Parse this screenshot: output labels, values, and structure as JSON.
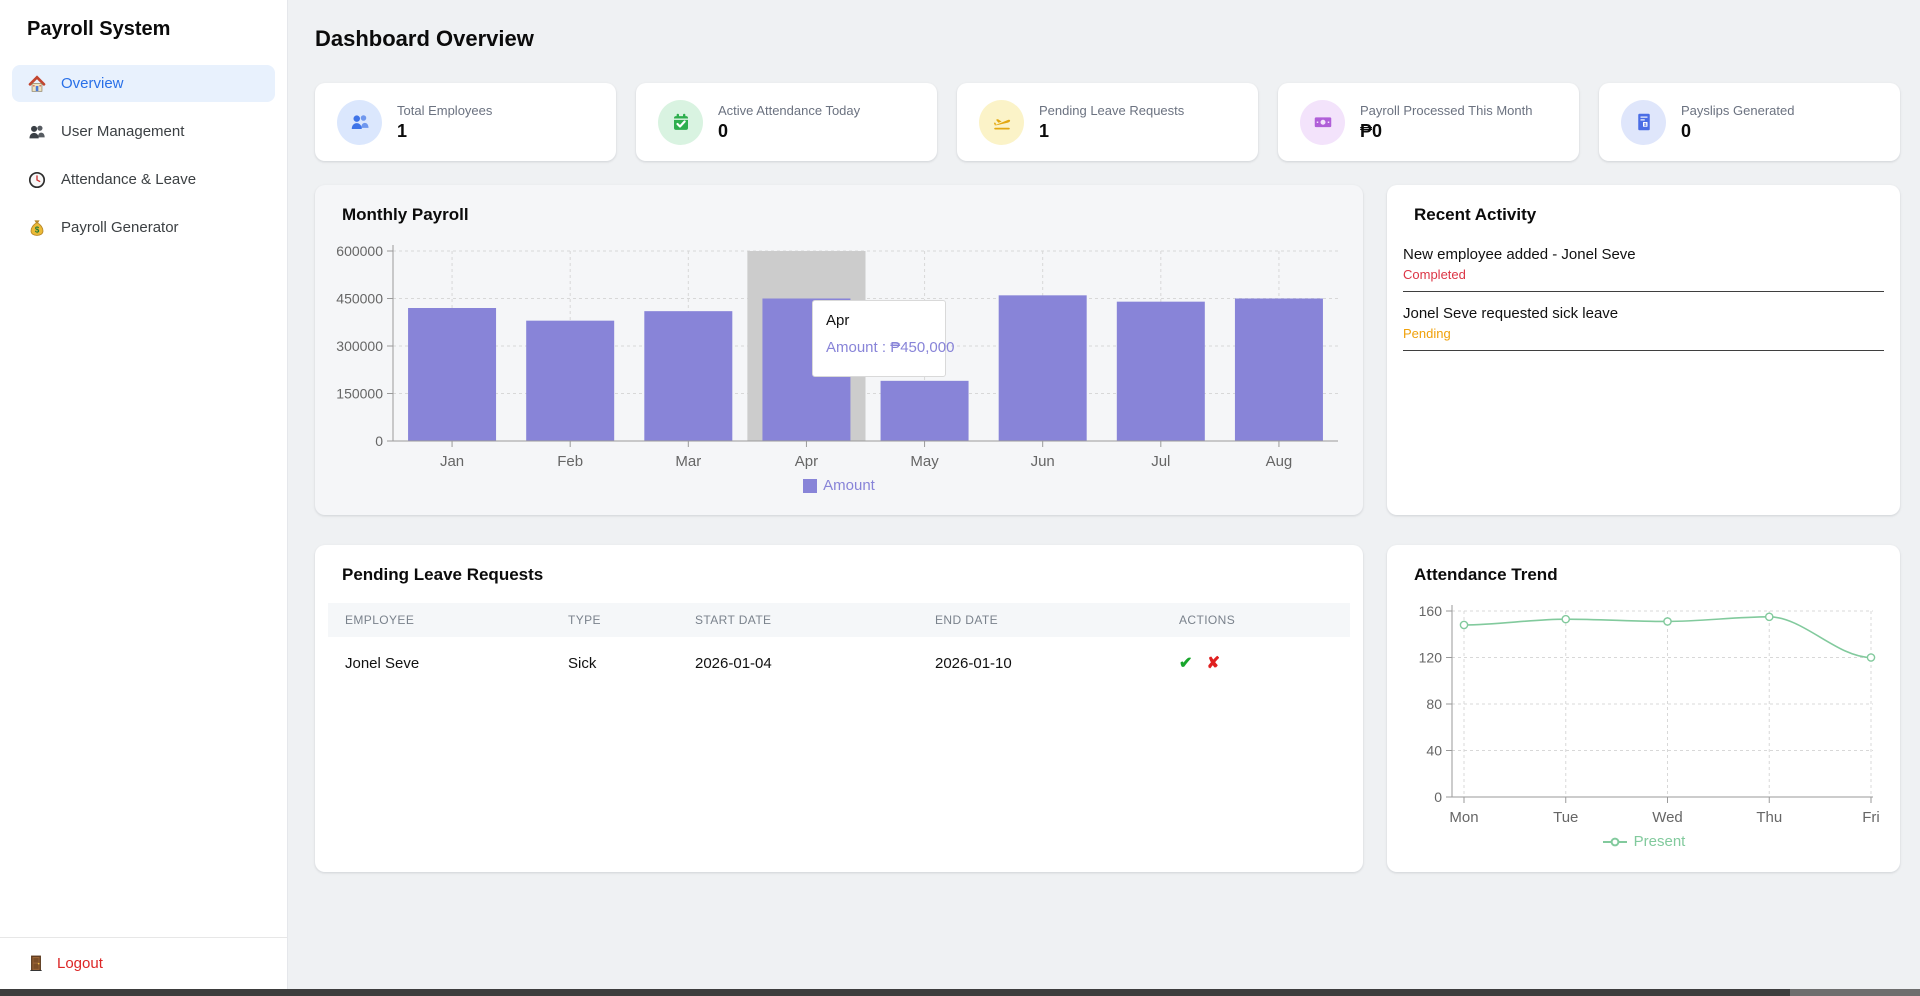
{
  "app_title": "Payroll System",
  "sidebar": {
    "items": [
      {
        "label": "Overview",
        "icon": "home-icon",
        "active": true
      },
      {
        "label": "User Management",
        "icon": "users-icon",
        "active": false
      },
      {
        "label": "Attendance & Leave",
        "icon": "clock-icon",
        "active": false
      },
      {
        "label": "Payroll Generator",
        "icon": "money-bag-icon",
        "active": false
      }
    ],
    "logout_label": "Logout"
  },
  "header": {
    "title": "Dashboard Overview"
  },
  "stat_cards": [
    {
      "label": "Total Employees",
      "value": "1",
      "icon": "users-icon",
      "accent": "#3f74e8",
      "icon_bg": "#dbe7fd"
    },
    {
      "label": "Active Attendance Today",
      "value": "0",
      "icon": "calendar-check-icon",
      "accent": "#2eae4e",
      "icon_bg": "#d9f3e1"
    },
    {
      "label": "Pending Leave Requests",
      "value": "1",
      "icon": "plane-departure-icon",
      "accent": "#e3a812",
      "icon_bg": "#fbf3c8"
    },
    {
      "label": "Payroll Processed This Month",
      "value": "₱0",
      "icon": "banknote-icon",
      "accent": "#b05fd8",
      "icon_bg": "#f3e3fb"
    },
    {
      "label": "Payslips Generated",
      "value": "0",
      "icon": "payslip-icon",
      "accent": "#4a6de5",
      "icon_bg": "#dfe6fb"
    }
  ],
  "monthly_payroll": {
    "title": "Monthly Payroll",
    "tooltip": {
      "label": "Apr",
      "value": "Amount : ₱450,000"
    }
  },
  "recent_activity": {
    "title": "Recent Activity",
    "items": [
      {
        "text": "New employee added - Jonel Seve",
        "status": "Completed",
        "status_color": "#dc3545"
      },
      {
        "text": "Jonel Seve requested sick leave",
        "status": "Pending",
        "status_color": "#f0a10a"
      }
    ]
  },
  "leave_requests": {
    "title": "Pending Leave Requests",
    "columns": [
      "EMPLOYEE",
      "TYPE",
      "START DATE",
      "END DATE",
      "ACTIONS"
    ],
    "rows": [
      {
        "employee": "Jonel Seve",
        "type": "Sick",
        "start_date": "2026-01-04",
        "end_date": "2026-01-10",
        "approve": "✔",
        "reject": "✘"
      }
    ]
  },
  "attendance_trend": {
    "title": "Attendance Trend"
  },
  "chart_data": [
    {
      "type": "bar",
      "title": "Monthly Payroll",
      "categories": [
        "Jan",
        "Feb",
        "Mar",
        "Apr",
        "May",
        "Jun",
        "Jul",
        "Aug"
      ],
      "values": [
        420000,
        380000,
        410000,
        450000,
        190000,
        460000,
        440000,
        450000
      ],
      "series_name": "Amount",
      "bar_color": "#8884d8",
      "ylim": [
        0,
        600000
      ],
      "yticks": [
        0,
        150000,
        300000,
        450000,
        600000
      ],
      "grid": "dashed",
      "legend_position": "bottom",
      "hover_category": "Apr",
      "hover_band_color": "#cccccc",
      "tooltip": {
        "label": "Apr",
        "value": "Amount : ₱450,000"
      }
    },
    {
      "type": "line",
      "title": "Attendance Trend",
      "categories": [
        "Mon",
        "Tue",
        "Wed",
        "Thu",
        "Fri"
      ],
      "values": [
        148,
        153,
        151,
        155,
        120
      ],
      "series_name": "Present",
      "line_color": "#82ca9d",
      "ylim": [
        0,
        160
      ],
      "yticks": [
        0,
        40,
        80,
        120,
        160
      ],
      "grid": "dashed",
      "legend_position": "bottom"
    }
  ]
}
